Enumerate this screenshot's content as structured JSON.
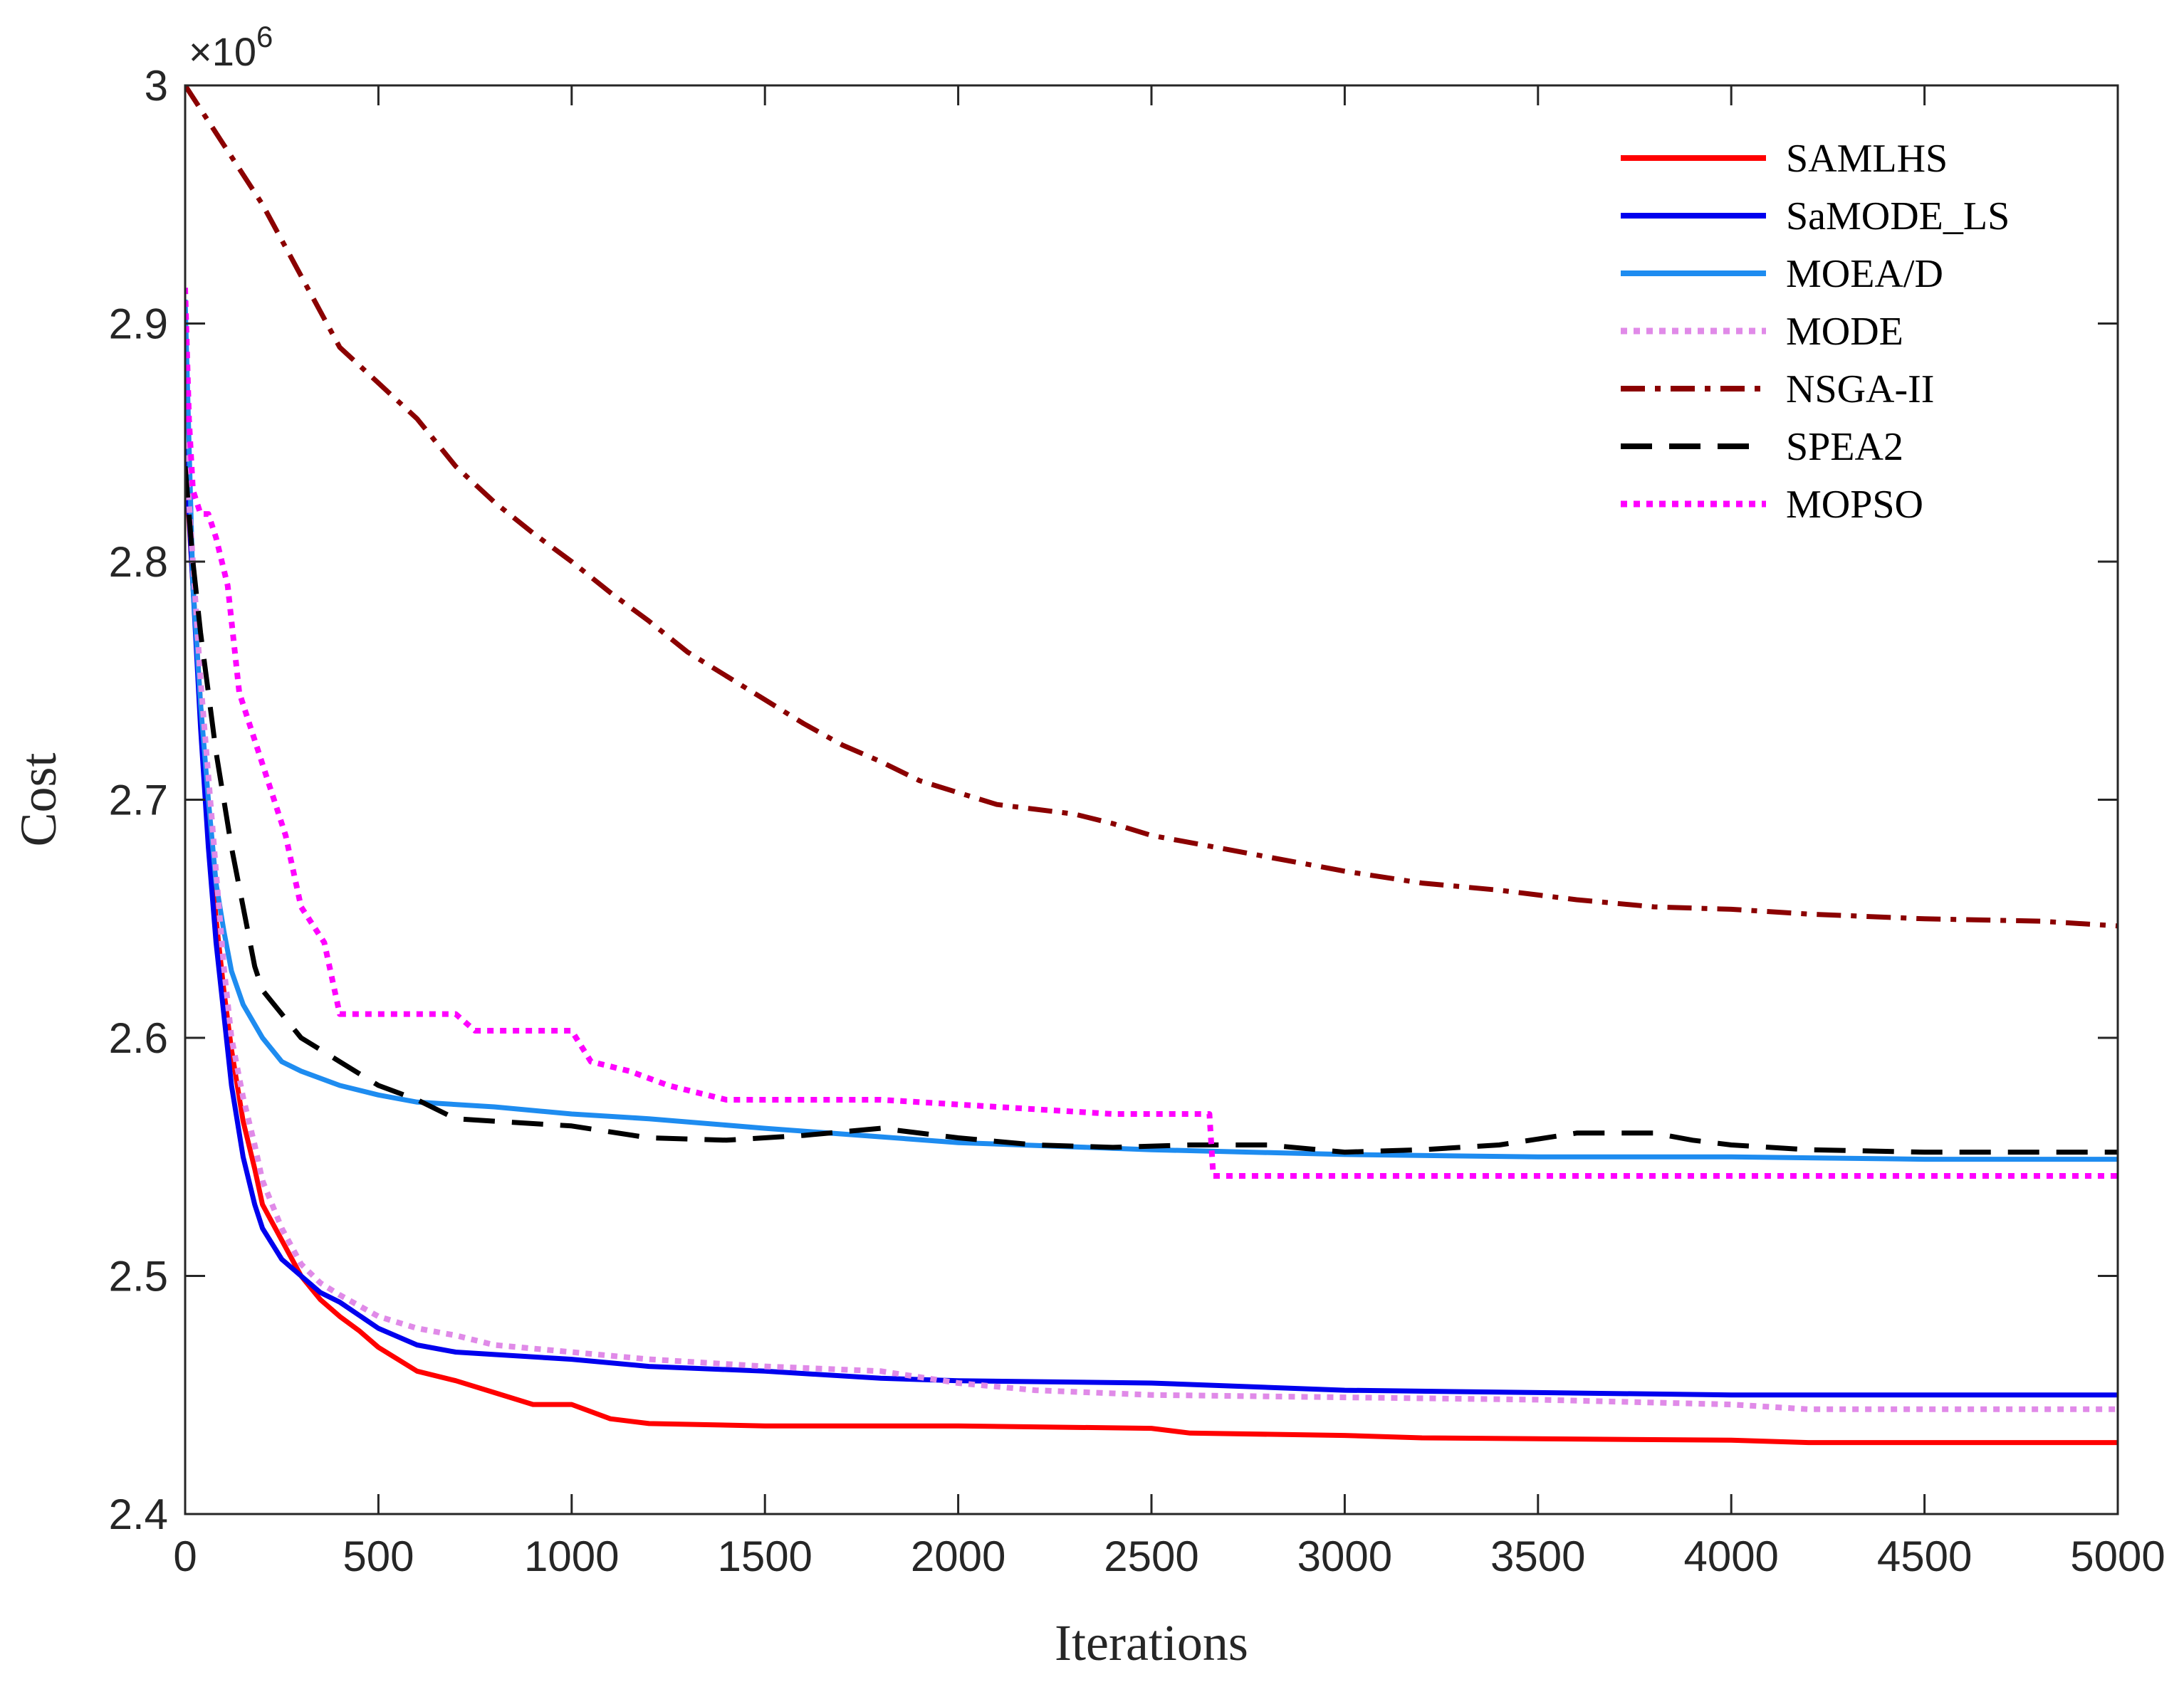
{
  "chart_data": {
    "type": "line",
    "title": "",
    "xlabel": "Iterations",
    "ylabel": "Cost",
    "y_multiplier_label": "×10",
    "y_multiplier_exponent": "6",
    "xlim": [
      0,
      5000
    ],
    "ylim": [
      2.4,
      3.0
    ],
    "x_ticks": [
      0,
      500,
      1000,
      1500,
      2000,
      2500,
      3000,
      3500,
      4000,
      4500,
      5000
    ],
    "x_tick_labels": [
      "0",
      "500",
      "1000",
      "1500",
      "2000",
      "2500",
      "3000",
      "3500",
      "4000",
      "4500",
      "5000"
    ],
    "y_ticks": [
      2.4,
      2.5,
      2.6,
      2.7,
      2.8,
      2.9,
      3.0
    ],
    "y_tick_labels": [
      "2.4",
      "2.5",
      "2.6",
      "2.7",
      "2.8",
      "2.9",
      "3"
    ],
    "grid": false,
    "legend_position": "top-right",
    "series": [
      {
        "name": "SAMLHS",
        "color": "#ff0000",
        "style": "solid",
        "x": [
          0,
          20,
          40,
          60,
          80,
          100,
          120,
          150,
          180,
          200,
          250,
          300,
          350,
          400,
          450,
          500,
          600,
          700,
          800,
          900,
          1000,
          1100,
          1200,
          1500,
          2000,
          2500,
          2600,
          3000,
          3200,
          4000,
          4200,
          5000
        ],
        "y": [
          2.845,
          2.79,
          2.74,
          2.69,
          2.65,
          2.62,
          2.595,
          2.565,
          2.545,
          2.53,
          2.515,
          2.5,
          2.49,
          2.483,
          2.477,
          2.47,
          2.46,
          2.456,
          2.451,
          2.446,
          2.446,
          2.44,
          2.438,
          2.437,
          2.437,
          2.436,
          2.434,
          2.433,
          2.432,
          2.431,
          2.43,
          2.43
        ]
      },
      {
        "name": "SaMODE_LS",
        "color": "#0000ee",
        "style": "solid",
        "x": [
          0,
          20,
          40,
          60,
          80,
          100,
          120,
          150,
          180,
          200,
          250,
          300,
          350,
          400,
          500,
          600,
          700,
          800,
          1000,
          1200,
          1500,
          1800,
          2000,
          2500,
          3000,
          3500,
          4000,
          5000
        ],
        "y": [
          2.85,
          2.79,
          2.73,
          2.68,
          2.64,
          2.61,
          2.58,
          2.55,
          2.53,
          2.52,
          2.507,
          2.5,
          2.493,
          2.489,
          2.478,
          2.471,
          2.468,
          2.467,
          2.465,
          2.462,
          2.46,
          2.457,
          2.456,
          2.455,
          2.452,
          2.451,
          2.45,
          2.45
        ]
      },
      {
        "name": "MOEA/D",
        "color": "#1e8cf0",
        "style": "solid",
        "x": [
          0,
          10,
          20,
          40,
          60,
          80,
          100,
          120,
          150,
          200,
          250,
          300,
          400,
          500,
          600,
          800,
          1000,
          1200,
          1500,
          2000,
          2500,
          3000,
          3500,
          4000,
          4500,
          5000
        ],
        "y": [
          2.91,
          2.85,
          2.79,
          2.74,
          2.7,
          2.665,
          2.645,
          2.628,
          2.614,
          2.6,
          2.59,
          2.586,
          2.58,
          2.576,
          2.573,
          2.571,
          2.568,
          2.566,
          2.562,
          2.556,
          2.553,
          2.551,
          2.55,
          2.55,
          2.549,
          2.549
        ]
      },
      {
        "name": "MODE",
        "color": "#e08ae8",
        "style": "dotted",
        "x": [
          0,
          20,
          40,
          60,
          80,
          100,
          120,
          150,
          180,
          200,
          250,
          300,
          350,
          400,
          500,
          600,
          700,
          800,
          1000,
          1200,
          1500,
          1800,
          2000,
          2200,
          2500,
          3000,
          3500,
          4000,
          4200,
          5000
        ],
        "y": [
          2.85,
          2.8,
          2.75,
          2.71,
          2.67,
          2.63,
          2.6,
          2.575,
          2.555,
          2.54,
          2.52,
          2.505,
          2.497,
          2.492,
          2.483,
          2.478,
          2.475,
          2.471,
          2.468,
          2.465,
          2.462,
          2.46,
          2.455,
          2.452,
          2.45,
          2.449,
          2.448,
          2.446,
          2.444,
          2.444
        ]
      },
      {
        "name": "NSGA-II",
        "color": "#8b0000",
        "style": "dashdot",
        "x": [
          0,
          100,
          200,
          300,
          400,
          500,
          600,
          700,
          800,
          900,
          1000,
          1100,
          1200,
          1300,
          1400,
          1500,
          1600,
          1700,
          1800,
          1900,
          2000,
          2100,
          2200,
          2300,
          2400,
          2500,
          2600,
          2700,
          2800,
          2900,
          3000,
          3200,
          3400,
          3600,
          3800,
          4000,
          4200,
          4500,
          4800,
          5000
        ],
        "y": [
          3.0,
          2.975,
          2.95,
          2.92,
          2.89,
          2.875,
          2.86,
          2.84,
          2.825,
          2.812,
          2.8,
          2.787,
          2.775,
          2.762,
          2.752,
          2.742,
          2.732,
          2.723,
          2.716,
          2.708,
          2.703,
          2.698,
          2.696,
          2.694,
          2.69,
          2.685,
          2.682,
          2.679,
          2.676,
          2.673,
          2.67,
          2.665,
          2.662,
          2.658,
          2.655,
          2.654,
          2.652,
          2.65,
          2.649,
          2.647
        ]
      },
      {
        "name": "SPEA2",
        "color": "#000000",
        "style": "dashed",
        "x": [
          0,
          20,
          40,
          60,
          80,
          100,
          120,
          150,
          180,
          200,
          250,
          300,
          350,
          400,
          500,
          600,
          700,
          800,
          1000,
          1200,
          1400,
          1600,
          1800,
          2000,
          2200,
          2400,
          2600,
          2800,
          3000,
          3200,
          3400,
          3600,
          3800,
          3900,
          4000,
          4200,
          4500,
          5000
        ],
        "y": [
          2.84,
          2.8,
          2.77,
          2.745,
          2.72,
          2.7,
          2.68,
          2.655,
          2.63,
          2.62,
          2.61,
          2.6,
          2.595,
          2.59,
          2.58,
          2.574,
          2.566,
          2.565,
          2.563,
          2.558,
          2.557,
          2.559,
          2.562,
          2.558,
          2.555,
          2.554,
          2.555,
          2.555,
          2.552,
          2.553,
          2.555,
          2.56,
          2.56,
          2.557,
          2.555,
          2.553,
          2.552,
          2.552
        ]
      },
      {
        "name": "MOPSO",
        "color": "#ff00ff",
        "style": "dotted",
        "x": [
          0,
          10,
          20,
          40,
          60,
          80,
          110,
          140,
          180,
          220,
          260,
          300,
          360,
          400,
          700,
          750,
          1000,
          1050,
          1150,
          1250,
          1400,
          1800,
          2400,
          2650,
          2660,
          5000
        ],
        "y": [
          2.915,
          2.86,
          2.83,
          2.82,
          2.82,
          2.81,
          2.79,
          2.745,
          2.725,
          2.705,
          2.685,
          2.655,
          2.64,
          2.61,
          2.61,
          2.603,
          2.603,
          2.59,
          2.586,
          2.58,
          2.574,
          2.574,
          2.568,
          2.568,
          2.542,
          2.542
        ]
      }
    ]
  }
}
